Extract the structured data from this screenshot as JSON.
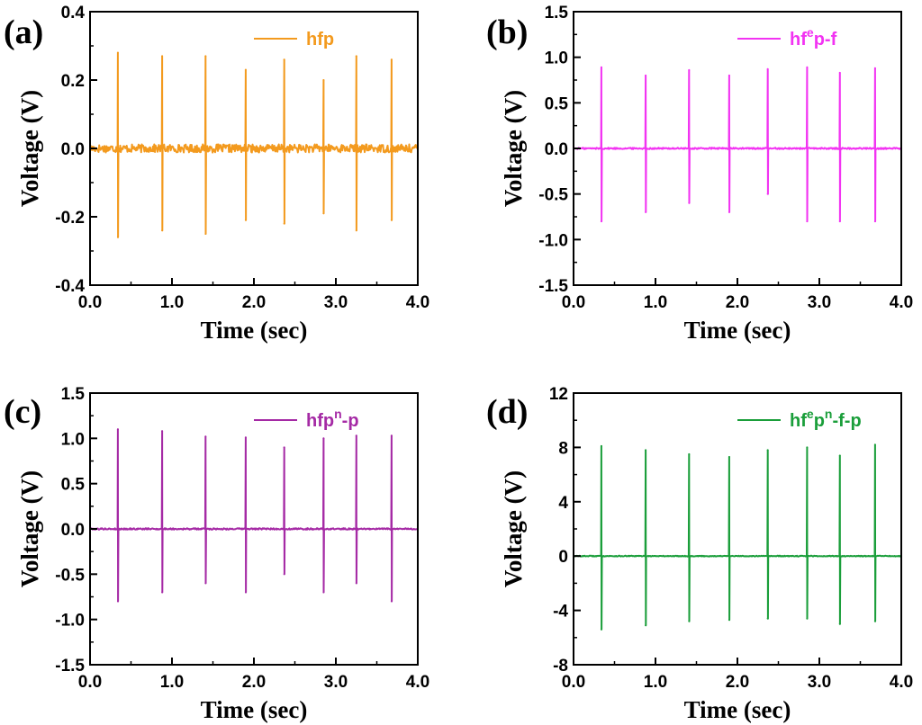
{
  "chart_data": [
    {
      "type": "line",
      "panel_label": "(a)",
      "xlabel": "Time (sec)",
      "ylabel": "Voltage (V)",
      "xlim": [
        0.0,
        4.0
      ],
      "ylim": [
        -0.4,
        0.4
      ],
      "xticks": [
        0.0,
        1.0,
        2.0,
        3.0,
        4.0
      ],
      "xtick_labels": [
        "0.0",
        "1.0",
        "2.0",
        "3.0",
        "4.0"
      ],
      "yticks": [
        -0.4,
        -0.2,
        0.0,
        0.2,
        0.4
      ],
      "ytick_labels": [
        "-0.4",
        "-0.2",
        "0.0",
        "0.2",
        "0.4"
      ],
      "legend": {
        "label": "hfp",
        "superscripts": [],
        "placement": "top-right"
      },
      "color": "#f39a1e",
      "baseline_noise": 0.012,
      "spikes": [
        {
          "t": 0.34,
          "peak": 0.28,
          "trough": -0.26
        },
        {
          "t": 0.88,
          "peak": 0.27,
          "trough": -0.24
        },
        {
          "t": 1.41,
          "peak": 0.27,
          "trough": -0.25
        },
        {
          "t": 1.9,
          "peak": 0.23,
          "trough": -0.21
        },
        {
          "t": 2.37,
          "peak": 0.26,
          "trough": -0.22
        },
        {
          "t": 2.85,
          "peak": 0.2,
          "trough": -0.19
        },
        {
          "t": 3.25,
          "peak": 0.27,
          "trough": -0.24
        },
        {
          "t": 3.68,
          "peak": 0.26,
          "trough": -0.21
        }
      ]
    },
    {
      "type": "line",
      "panel_label": "(b)",
      "xlabel": "Time (sec)",
      "ylabel": "Voltage (V)",
      "xlim": [
        0.0,
        4.0
      ],
      "ylim": [
        -1.5,
        1.5
      ],
      "xticks": [
        0.0,
        1.0,
        2.0,
        3.0,
        4.0
      ],
      "xtick_labels": [
        "0.0",
        "1.0",
        "2.0",
        "3.0",
        "4.0"
      ],
      "yticks": [
        -1.5,
        -1.0,
        -0.5,
        0.0,
        0.5,
        1.0,
        1.5
      ],
      "ytick_labels": [
        "-1.5",
        "-1.0",
        "-0.5",
        "0.0",
        "0.5",
        "1.0",
        "1.5"
      ],
      "legend": {
        "label": "hfp-f",
        "superscripts": [
          {
            "after": "f",
            "text": "e"
          }
        ],
        "placement": "top-right"
      },
      "color": "#f233f2",
      "baseline_noise": 0.008,
      "spikes": [
        {
          "t": 0.34,
          "peak": 0.89,
          "trough": -0.8
        },
        {
          "t": 0.88,
          "peak": 0.8,
          "trough": -0.7
        },
        {
          "t": 1.41,
          "peak": 0.86,
          "trough": -0.6
        },
        {
          "t": 1.9,
          "peak": 0.8,
          "trough": -0.7
        },
        {
          "t": 2.37,
          "peak": 0.87,
          "trough": -0.5
        },
        {
          "t": 2.85,
          "peak": 0.89,
          "trough": -0.8
        },
        {
          "t": 3.25,
          "peak": 0.83,
          "trough": -0.8
        },
        {
          "t": 3.68,
          "peak": 0.88,
          "trough": -0.8
        }
      ]
    },
    {
      "type": "line",
      "panel_label": "(c)",
      "xlabel": "Time (sec)",
      "ylabel": "Voltage (V)",
      "xlim": [
        0.0,
        4.0
      ],
      "ylim": [
        -1.5,
        1.5
      ],
      "xticks": [
        0.0,
        1.0,
        2.0,
        3.0,
        4.0
      ],
      "xtick_labels": [
        "0.0",
        "1.0",
        "2.0",
        "3.0",
        "4.0"
      ],
      "yticks": [
        -1.5,
        -1.0,
        -0.5,
        0.0,
        0.5,
        1.0,
        1.5
      ],
      "ytick_labels": [
        "-1.5",
        "-1.0",
        "-0.5",
        "0.0",
        "0.5",
        "1.0",
        "1.5"
      ],
      "legend": {
        "label": "hfp-p",
        "superscripts": [
          {
            "after": "p",
            "text": "n"
          }
        ],
        "placement": "top-right"
      },
      "color": "#a52aa5",
      "baseline_noise": 0.008,
      "spikes": [
        {
          "t": 0.34,
          "peak": 1.1,
          "trough": -0.8
        },
        {
          "t": 0.88,
          "peak": 1.08,
          "trough": -0.7
        },
        {
          "t": 1.41,
          "peak": 1.02,
          "trough": -0.6
        },
        {
          "t": 1.9,
          "peak": 1.01,
          "trough": -0.7
        },
        {
          "t": 2.37,
          "peak": 0.9,
          "trough": -0.5
        },
        {
          "t": 2.85,
          "peak": 1.0,
          "trough": -0.7
        },
        {
          "t": 3.25,
          "peak": 1.03,
          "trough": -0.6
        },
        {
          "t": 3.68,
          "peak": 1.03,
          "trough": -0.8
        }
      ]
    },
    {
      "type": "line",
      "panel_label": "(d)",
      "xlabel": "Time (sec)",
      "ylabel": "Voltage (V)",
      "xlim": [
        0.0,
        4.0
      ],
      "ylim": [
        -8,
        12
      ],
      "xticks": [
        0.0,
        1.0,
        2.0,
        3.0,
        4.0
      ],
      "xtick_labels": [
        "0.0",
        "1.0",
        "2.0",
        "3.0",
        "4.0"
      ],
      "yticks": [
        -8,
        -4,
        0,
        4,
        8,
        12
      ],
      "ytick_labels": [
        "-8",
        "-4",
        "0",
        "4",
        "8",
        "12"
      ],
      "legend": {
        "label": "hfp-f-p",
        "superscripts": [
          {
            "after": "f",
            "text": "e"
          },
          {
            "after": "p",
            "text": "n"
          }
        ],
        "placement": "top-right"
      },
      "color": "#1a9e3a",
      "baseline_noise": 0.03,
      "spikes": [
        {
          "t": 0.34,
          "peak": 8.1,
          "trough": -5.4
        },
        {
          "t": 0.88,
          "peak": 7.8,
          "trough": -5.1
        },
        {
          "t": 1.41,
          "peak": 7.5,
          "trough": -4.8
        },
        {
          "t": 1.9,
          "peak": 7.3,
          "trough": -4.7
        },
        {
          "t": 2.37,
          "peak": 7.8,
          "trough": -4.6
        },
        {
          "t": 2.85,
          "peak": 8.0,
          "trough": -4.6
        },
        {
          "t": 3.25,
          "peak": 7.4,
          "trough": -5.0
        },
        {
          "t": 3.68,
          "peak": 8.2,
          "trough": -4.8
        }
      ]
    }
  ]
}
